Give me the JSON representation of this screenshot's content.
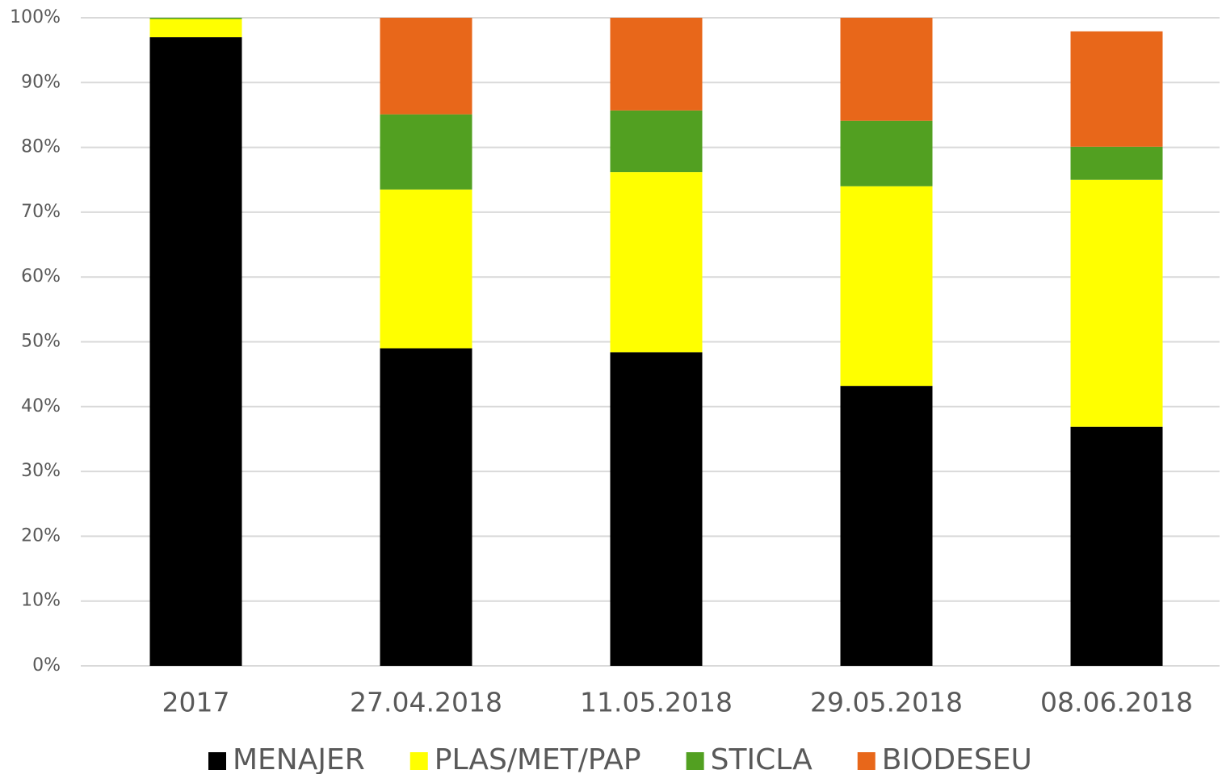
{
  "chart_data": {
    "type": "stacked_bar",
    "categories": [
      "2017",
      "27.04.2018",
      "11.05.2018",
      "29.05.2018",
      "08.06.2018"
    ],
    "series": [
      {
        "name": "MENAJER",
        "color": "#000000",
        "values": [
          97,
          49,
          48.4,
          43.2,
          36.9
        ]
      },
      {
        "name": "PLAS/MET/PAP",
        "color": "#ffff00",
        "values": [
          2.8,
          24.5,
          27.8,
          30.8,
          38.1
        ]
      },
      {
        "name": "STICLA",
        "color": "#52a021",
        "values": [
          0.2,
          11.6,
          9.5,
          10.1,
          5.1
        ]
      },
      {
        "name": "BIODESEU",
        "color": "#e8671a",
        "values": [
          0,
          14.9,
          14.3,
          15.9,
          17.8
        ]
      }
    ],
    "ylim": [
      0,
      100
    ],
    "yticks": [
      {
        "value": 0,
        "label": "0%"
      },
      {
        "value": 10,
        "label": "10%"
      },
      {
        "value": 20,
        "label": "20%"
      },
      {
        "value": 30,
        "label": "30%"
      },
      {
        "value": 40,
        "label": "40%"
      },
      {
        "value": 50,
        "label": "50%"
      },
      {
        "value": 60,
        "label": "60%"
      },
      {
        "value": 70,
        "label": "70%"
      },
      {
        "value": 80,
        "label": "80%"
      },
      {
        "value": 90,
        "label": "90%"
      },
      {
        "value": 100,
        "label": "100%"
      }
    ],
    "grid": true,
    "legend": "bottom"
  }
}
